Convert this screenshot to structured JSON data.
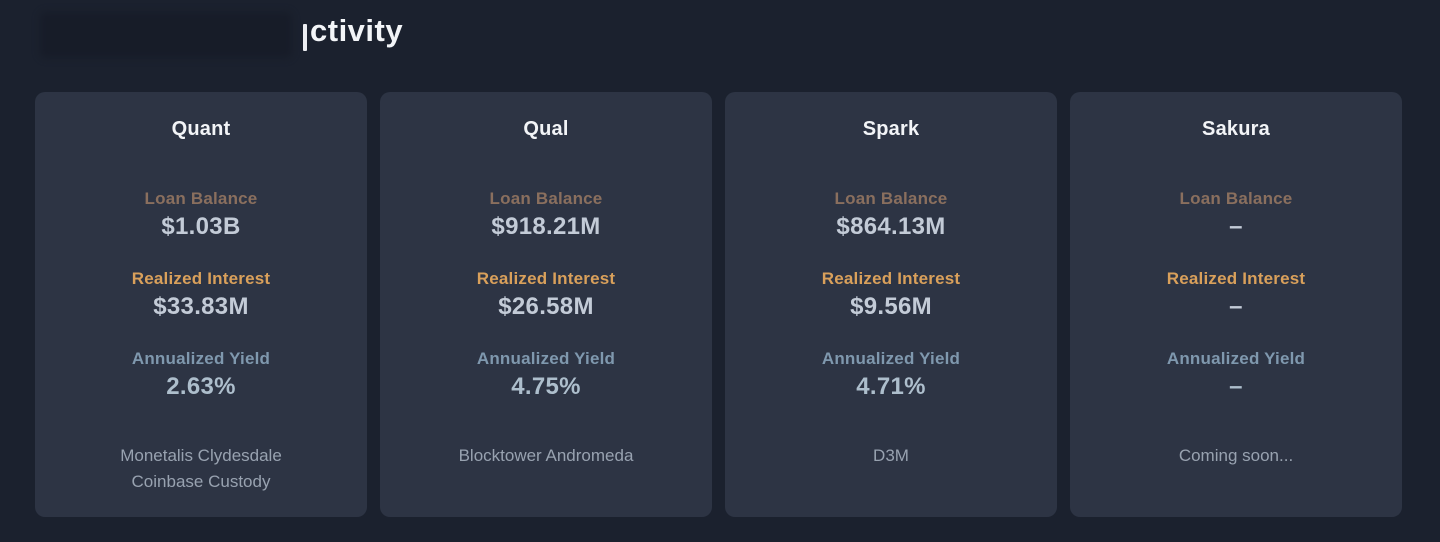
{
  "page": {
    "title_visible": "ctivity",
    "background_color": "#1b212e"
  },
  "colors": {
    "card_background": "#2d3444",
    "loan_balance_label": "#8a6f5e",
    "realized_interest_label": "#d9a05b",
    "annualized_yield_label": "#7f98ae",
    "value_text": "#c3cbd7",
    "yield_value_text": "#adbecc",
    "footer_text": "#98a2b0",
    "title_text": "#f3f5f8"
  },
  "cards": [
    {
      "title": "Quant",
      "loan_balance": {
        "label": "Loan Balance",
        "value": "$1.03B"
      },
      "realized_interest": {
        "label": "Realized Interest",
        "value": "$33.83M"
      },
      "annualized_yield": {
        "label": "Annualized Yield",
        "value": "2.63%"
      },
      "footer": [
        "Monetalis Clydesdale",
        "Coinbase Custody"
      ]
    },
    {
      "title": "Qual",
      "loan_balance": {
        "label": "Loan Balance",
        "value": "$918.21M"
      },
      "realized_interest": {
        "label": "Realized Interest",
        "value": "$26.58M"
      },
      "annualized_yield": {
        "label": "Annualized Yield",
        "value": "4.75%"
      },
      "footer": [
        "Blocktower Andromeda"
      ]
    },
    {
      "title": "Spark",
      "loan_balance": {
        "label": "Loan Balance",
        "value": "$864.13M"
      },
      "realized_interest": {
        "label": "Realized Interest",
        "value": "$9.56M"
      },
      "annualized_yield": {
        "label": "Annualized Yield",
        "value": "4.71%"
      },
      "footer": [
        "D3M"
      ]
    },
    {
      "title": "Sakura",
      "loan_balance": {
        "label": "Loan Balance",
        "value": "–"
      },
      "realized_interest": {
        "label": "Realized Interest",
        "value": "–"
      },
      "annualized_yield": {
        "label": "Annualized Yield",
        "value": "–"
      },
      "footer": [
        "Coming soon..."
      ]
    }
  ]
}
